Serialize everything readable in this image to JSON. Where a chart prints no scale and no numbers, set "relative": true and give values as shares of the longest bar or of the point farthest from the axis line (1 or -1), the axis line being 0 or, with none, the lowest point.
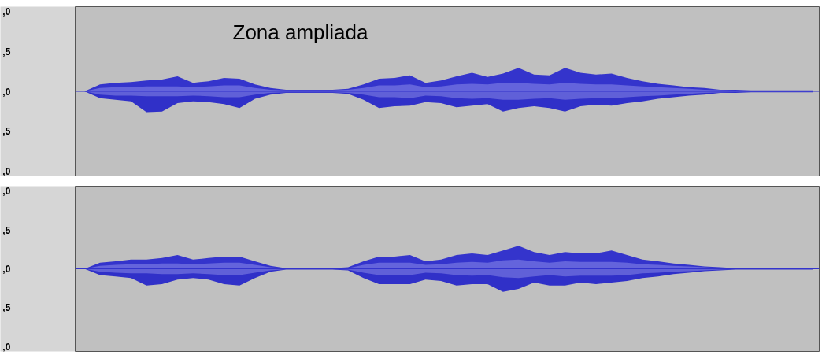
{
  "chart_data": [
    {
      "type": "area",
      "title": "Zona ampliada",
      "relative": true,
      "ref_lines": [
        {
          "axis": "y",
          "value": 0,
          "color": "#3434cc"
        }
      ],
      "annotations": [
        ",0",
        ",5",
        ",0",
        ",5",
        ",0"
      ],
      "categories": [
        null,
        null,
        null,
        null,
        null,
        null,
        null,
        null,
        null,
        null,
        null,
        null,
        null,
        null,
        null,
        null,
        null,
        null,
        null,
        null,
        null,
        null,
        null,
        null,
        null,
        null,
        null,
        null,
        null,
        null,
        null,
        null,
        null,
        null,
        null,
        null,
        null,
        null,
        null,
        null,
        null,
        null,
        null,
        null,
        null,
        null,
        null,
        null
      ],
      "tick_labels": false,
      "series": [
        {
          "color": "#3434cc",
          "values": [
            0,
            0.29,
            0.36,
            0.39,
            0.46,
            0.5,
            0.64,
            0.36,
            0.43,
            0.57,
            0.54,
            0.29,
            0.14,
            0.07,
            0.07,
            0.07,
            0.07,
            0.11,
            0.29,
            0.54,
            0.57,
            0.68,
            0.36,
            0.46,
            0.64,
            0.79,
            0.61,
            0.75,
            1,
            0.71,
            0.68,
            1,
            0.79,
            0.71,
            0.75,
            0.57,
            0.43,
            0.32,
            0.25,
            0.18,
            0.14,
            0.07,
            0.07,
            0.04,
            0.04,
            0.04,
            0.04,
            0.04
          ]
        },
        {
          "color": "#3030c8",
          "values": [
            0,
            -0.29,
            -0.36,
            -0.43,
            -0.89,
            -0.86,
            -0.5,
            -0.43,
            -0.46,
            -0.54,
            -0.71,
            -0.32,
            -0.14,
            -0.07,
            -0.07,
            -0.07,
            -0.07,
            -0.11,
            -0.36,
            -0.71,
            -0.64,
            -0.61,
            -0.46,
            -0.5,
            -0.68,
            -0.61,
            -0.54,
            -0.86,
            -0.71,
            -0.64,
            -0.71,
            -0.86,
            -0.64,
            -0.57,
            -0.61,
            -0.5,
            -0.43,
            -0.32,
            -0.25,
            -0.18,
            -0.14,
            -0.07,
            -0.07,
            -0.04,
            -0.04,
            -0.04,
            -0.04,
            -0.04
          ]
        },
        {
          "color": "#6464dc",
          "values": [
            0,
            0.14,
            0.18,
            0.18,
            0.21,
            0.21,
            0.21,
            0.18,
            0.21,
            0.25,
            0.25,
            0.14,
            0.07,
            0.04,
            0.04,
            0.04,
            0.04,
            0.07,
            0.14,
            0.25,
            0.25,
            0.29,
            0.18,
            0.21,
            0.29,
            0.32,
            0.29,
            0.36,
            0.36,
            0.32,
            0.29,
            0.36,
            0.32,
            0.29,
            0.29,
            0.25,
            0.21,
            0.18,
            0.14,
            0.11,
            0.07,
            0.05,
            0.03,
            0.02,
            0.02,
            0.02,
            0.02,
            0.02
          ]
        },
        {
          "color": "#6060d8",
          "values": [
            0,
            -0.14,
            -0.18,
            -0.18,
            -0.21,
            -0.21,
            -0.21,
            -0.18,
            -0.21,
            -0.25,
            -0.25,
            -0.14,
            -0.07,
            -0.04,
            -0.04,
            -0.04,
            -0.04,
            -0.07,
            -0.14,
            -0.25,
            -0.25,
            -0.29,
            -0.18,
            -0.21,
            -0.29,
            -0.32,
            -0.29,
            -0.36,
            -0.36,
            -0.32,
            -0.29,
            -0.36,
            -0.32,
            -0.29,
            -0.29,
            -0.25,
            -0.21,
            -0.18,
            -0.14,
            -0.11,
            -0.07,
            -0.05,
            -0.03,
            -0.02,
            -0.02,
            -0.02,
            -0.02,
            -0.02
          ]
        }
      ]
    },
    {
      "type": "area",
      "relative": true,
      "ref_lines": [
        {
          "axis": "y",
          "value": 0,
          "color": "#3434cc"
        }
      ],
      "annotations": [
        ",0",
        ",5",
        ",0",
        ",5",
        ",0"
      ],
      "categories": [
        null,
        null,
        null,
        null,
        null,
        null,
        null,
        null,
        null,
        null,
        null,
        null,
        null,
        null,
        null,
        null,
        null,
        null,
        null,
        null,
        null,
        null,
        null,
        null,
        null,
        null,
        null,
        null,
        null,
        null,
        null,
        null,
        null,
        null,
        null,
        null,
        null,
        null,
        null,
        null,
        null,
        null,
        null,
        null,
        null,
        null,
        null,
        null
      ],
      "tick_labels": false,
      "series": [
        {
          "color": "#3434cc",
          "values": [
            0,
            0.27,
            0.33,
            0.4,
            0.4,
            0.47,
            0.6,
            0.4,
            0.47,
            0.53,
            0.53,
            0.33,
            0.13,
            0.03,
            0.03,
            0.03,
            0.03,
            0.07,
            0.33,
            0.53,
            0.53,
            0.6,
            0.33,
            0.4,
            0.6,
            0.67,
            0.6,
            0.8,
            1,
            0.73,
            0.6,
            0.73,
            0.67,
            0.67,
            0.8,
            0.6,
            0.4,
            0.33,
            0.23,
            0.17,
            0.1,
            0.07,
            0.03,
            0.03,
            0.03,
            0.03,
            0.03,
            0.03
          ]
        },
        {
          "color": "#3030c8",
          "values": [
            0,
            -0.27,
            -0.33,
            -0.4,
            -0.73,
            -0.67,
            -0.47,
            -0.4,
            -0.47,
            -0.67,
            -0.73,
            -0.4,
            -0.13,
            -0.03,
            -0.03,
            -0.03,
            -0.03,
            -0.07,
            -0.4,
            -0.67,
            -0.67,
            -0.67,
            -0.47,
            -0.53,
            -0.73,
            -0.67,
            -0.67,
            -1,
            -0.87,
            -0.6,
            -0.73,
            -0.73,
            -0.6,
            -0.67,
            -0.6,
            -0.53,
            -0.4,
            -0.33,
            -0.23,
            -0.17,
            -0.1,
            -0.07,
            -0.03,
            -0.03,
            -0.03,
            -0.03,
            -0.03,
            -0.03
          ]
        },
        {
          "color": "#6464dc",
          "values": [
            0,
            0.13,
            0.17,
            0.2,
            0.2,
            0.23,
            0.23,
            0.2,
            0.23,
            0.27,
            0.27,
            0.17,
            0.07,
            0.02,
            0.02,
            0.02,
            0.02,
            0.03,
            0.17,
            0.27,
            0.27,
            0.27,
            0.17,
            0.2,
            0.27,
            0.3,
            0.27,
            0.37,
            0.4,
            0.33,
            0.27,
            0.33,
            0.3,
            0.3,
            0.3,
            0.27,
            0.2,
            0.17,
            0.13,
            0.1,
            0.07,
            0.03,
            0.02,
            0.02,
            0.02,
            0.02,
            0.02,
            0.02
          ]
        },
        {
          "color": "#6060d8",
          "values": [
            0,
            -0.13,
            -0.17,
            -0.2,
            -0.2,
            -0.23,
            -0.23,
            -0.2,
            -0.23,
            -0.27,
            -0.27,
            -0.17,
            -0.07,
            -0.02,
            -0.02,
            -0.02,
            -0.02,
            -0.03,
            -0.17,
            -0.27,
            -0.27,
            -0.27,
            -0.17,
            -0.2,
            -0.27,
            -0.3,
            -0.27,
            -0.37,
            -0.4,
            -0.33,
            -0.27,
            -0.33,
            -0.3,
            -0.3,
            -0.3,
            -0.27,
            -0.2,
            -0.17,
            -0.13,
            -0.1,
            -0.07,
            -0.03,
            -0.02,
            -0.02,
            -0.02,
            -0.02,
            -0.02,
            -0.02
          ]
        }
      ]
    }
  ]
}
